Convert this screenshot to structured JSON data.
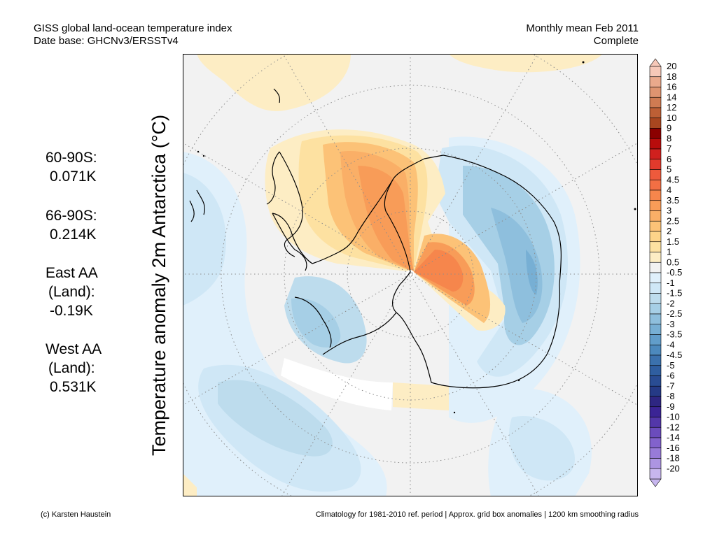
{
  "header": {
    "title": "GISS global land-ocean temperature index",
    "database": "Date base: GHCNv3/ERSSTv4",
    "period": "Monthly mean Feb 2011",
    "status": "Complete"
  },
  "stats": [
    {
      "label": "60-90S:",
      "value": "0.071K"
    },
    {
      "label": "66-90S:",
      "value": "0.214K"
    },
    {
      "label_line1": "East AA",
      "label_line2": "(Land):",
      "value": "-0.19K"
    },
    {
      "label_line1": "West AA",
      "label_line2": "(Land):",
      "value": "0.531K"
    }
  ],
  "axis_label": "Temperature anomaly 2m Antarctica (°C)",
  "colorbar": {
    "labels": [
      "20",
      "18",
      "16",
      "14",
      "12",
      "10",
      "9",
      "8",
      "7",
      "6",
      "5",
      "4.5",
      "4",
      "3.5",
      "3",
      "2.5",
      "2",
      "1.5",
      "1",
      "0.5",
      "-0.5",
      "-1",
      "-1.5",
      "-2",
      "-2.5",
      "-3",
      "-3.5",
      "-4",
      "-4.5",
      "-5",
      "-6",
      "-7",
      "-8",
      "-9",
      "-10",
      "-12",
      "-14",
      "-16",
      "-18",
      "-20"
    ],
    "colors": [
      "#f6c8b8",
      "#eaa98c",
      "#df9470",
      "#cf7b52",
      "#bd5f35",
      "#a8461f",
      "#8b0000",
      "#b80c0c",
      "#d0201e",
      "#e23a2c",
      "#ee5a3c",
      "#f26f44",
      "#f6864c",
      "#f89c58",
      "#faaf67",
      "#fcc277",
      "#fdd389",
      "#fde1a1",
      "#fdedc4",
      "#f2f2f2",
      "#e0f0fb",
      "#cfe7f6",
      "#bddced",
      "#a6cfe6",
      "#8ebfdd",
      "#77afd4",
      "#619dca",
      "#4c89bd",
      "#3b71ad",
      "#2f5ea0",
      "#294c93",
      "#253a86",
      "#2e2682",
      "#3b2495",
      "#5337a9",
      "#6b4cbc",
      "#8262cc",
      "#987bd8",
      "#ad95e2",
      "#c7b6ee"
    ]
  },
  "footer": {
    "credit": "(c) Karsten Haustein",
    "note": "Climatology for 1981-2010 ref. period | Approx. grid box anomalies | 1200 km smoothing radius"
  }
}
